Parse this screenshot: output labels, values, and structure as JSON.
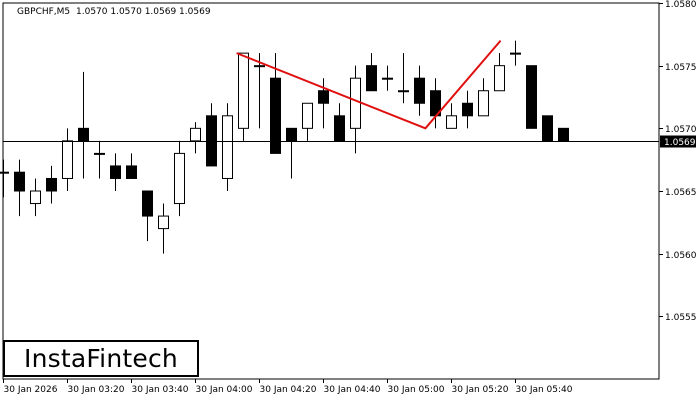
{
  "header": {
    "symbol": "GBPCHF,M5",
    "ohlc": "1.0570 1.0570 1.0569 1.0569"
  },
  "logo": {
    "text": "InstaFintech"
  },
  "chart_data": {
    "type": "candlestick",
    "symbol": "GBPCHF",
    "timeframe": "M5",
    "ylim": [
      1.055,
      1.058
    ],
    "y_ticks": [
      "1.0580",
      "1.0575",
      "1.0570",
      "1.0565",
      "1.0560",
      "1.0555"
    ],
    "x_ticks": [
      "30 Jan 2026",
      "30 Jan 03:20",
      "30 Jan 03:40",
      "30 Jan 04:00",
      "30 Jan 04:20",
      "30 Jan 04:40",
      "30 Jan 05:00",
      "30 Jan 05:20",
      "30 Jan 05:40"
    ],
    "current_price": 1.0569,
    "current_price_label": "1.0569",
    "candles": [
      {
        "o": 1.05665,
        "h": 1.05675,
        "l": 1.05645,
        "c": 1.05665
      },
      {
        "o": 1.05665,
        "h": 1.05675,
        "l": 1.0563,
        "c": 1.0565
      },
      {
        "o": 1.0564,
        "h": 1.0566,
        "l": 1.0563,
        "c": 1.0565
      },
      {
        "o": 1.0566,
        "h": 1.0567,
        "l": 1.0564,
        "c": 1.0565
      },
      {
        "o": 1.0566,
        "h": 1.057,
        "l": 1.0565,
        "c": 1.0569
      },
      {
        "o": 1.057,
        "h": 1.05745,
        "l": 1.0566,
        "c": 1.0569
      },
      {
        "o": 1.0568,
        "h": 1.0569,
        "l": 1.0566,
        "c": 1.0568
      },
      {
        "o": 1.0567,
        "h": 1.0568,
        "l": 1.0565,
        "c": 1.0566
      },
      {
        "o": 1.0567,
        "h": 1.0568,
        "l": 1.0566,
        "c": 1.0566
      },
      {
        "o": 1.0565,
        "h": 1.0565,
        "l": 1.0561,
        "c": 1.0563
      },
      {
        "o": 1.0562,
        "h": 1.0564,
        "l": 1.056,
        "c": 1.0563
      },
      {
        "o": 1.0564,
        "h": 1.0569,
        "l": 1.0563,
        "c": 1.0568
      },
      {
        "o": 1.0569,
        "h": 1.05705,
        "l": 1.0568,
        "c": 1.057
      },
      {
        "o": 1.0571,
        "h": 1.0572,
        "l": 1.0567,
        "c": 1.0567
      },
      {
        "o": 1.0566,
        "h": 1.0572,
        "l": 1.0565,
        "c": 1.0571
      },
      {
        "o": 1.057,
        "h": 1.0576,
        "l": 1.0569,
        "c": 1.0576
      },
      {
        "o": 1.0575,
        "h": 1.0576,
        "l": 1.057,
        "c": 1.0575
      },
      {
        "o": 1.0574,
        "h": 1.0576,
        "l": 1.0568,
        "c": 1.0568
      },
      {
        "o": 1.057,
        "h": 1.057,
        "l": 1.0566,
        "c": 1.0569
      },
      {
        "o": 1.057,
        "h": 1.0572,
        "l": 1.0569,
        "c": 1.0572
      },
      {
        "o": 1.0573,
        "h": 1.0574,
        "l": 1.057,
        "c": 1.0572
      },
      {
        "o": 1.0571,
        "h": 1.0572,
        "l": 1.0569,
        "c": 1.0569
      },
      {
        "o": 1.057,
        "h": 1.0575,
        "l": 1.0568,
        "c": 1.0574
      },
      {
        "o": 1.0575,
        "h": 1.0576,
        "l": 1.0573,
        "c": 1.0573
      },
      {
        "o": 1.0574,
        "h": 1.0575,
        "l": 1.0573,
        "c": 1.0574
      },
      {
        "o": 1.0573,
        "h": 1.0576,
        "l": 1.0572,
        "c": 1.0573
      },
      {
        "o": 1.0574,
        "h": 1.0575,
        "l": 1.0571,
        "c": 1.0572
      },
      {
        "o": 1.0573,
        "h": 1.0574,
        "l": 1.057,
        "c": 1.0571
      },
      {
        "o": 1.057,
        "h": 1.0572,
        "l": 1.057,
        "c": 1.0571
      },
      {
        "o": 1.0572,
        "h": 1.0573,
        "l": 1.057,
        "c": 1.0571
      },
      {
        "o": 1.0571,
        "h": 1.0574,
        "l": 1.0571,
        "c": 1.0573
      },
      {
        "o": 1.0573,
        "h": 1.0576,
        "l": 1.0573,
        "c": 1.0575
      },
      {
        "o": 1.0576,
        "h": 1.0577,
        "l": 1.0575,
        "c": 1.0576
      },
      {
        "o": 1.0575,
        "h": 1.0575,
        "l": 1.057,
        "c": 1.057
      },
      {
        "o": 1.0571,
        "h": 1.0571,
        "l": 1.0569,
        "c": 1.0569
      },
      {
        "o": 1.057,
        "h": 1.057,
        "l": 1.0569,
        "c": 1.0569
      }
    ],
    "pattern": {
      "type": "double-top",
      "color": "#e01010",
      "points": [
        {
          "candle": 14.6,
          "price": 1.0576
        },
        {
          "candle": 26.4,
          "price": 1.057
        },
        {
          "candle": 31.1,
          "price": 1.0577
        }
      ]
    },
    "colors": {
      "background": "#ffffff",
      "bull_body": "#ffffff",
      "bear_body": "#000000",
      "wick": "#000000",
      "axis": "#000000",
      "pattern": "#e01010"
    }
  }
}
